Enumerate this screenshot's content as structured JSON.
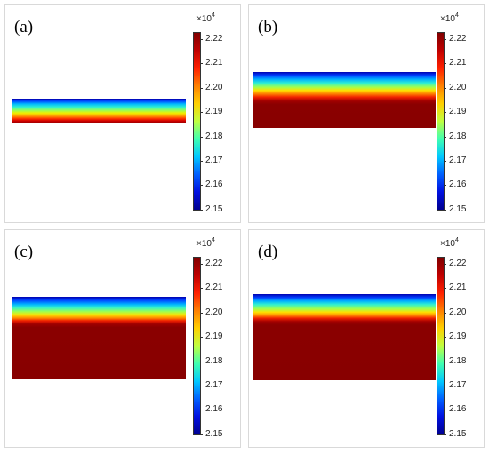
{
  "colorbar": {
    "scale_prefix": "×10",
    "scale_exponent": "4",
    "ticks": [
      "2.22",
      "2.21",
      "2.20",
      "2.19",
      "2.18",
      "2.17",
      "2.16",
      "2.15"
    ]
  },
  "panels": [
    {
      "label": "(a)"
    },
    {
      "label": "(b)"
    },
    {
      "label": "(c)"
    },
    {
      "label": "(d)"
    }
  ]
}
